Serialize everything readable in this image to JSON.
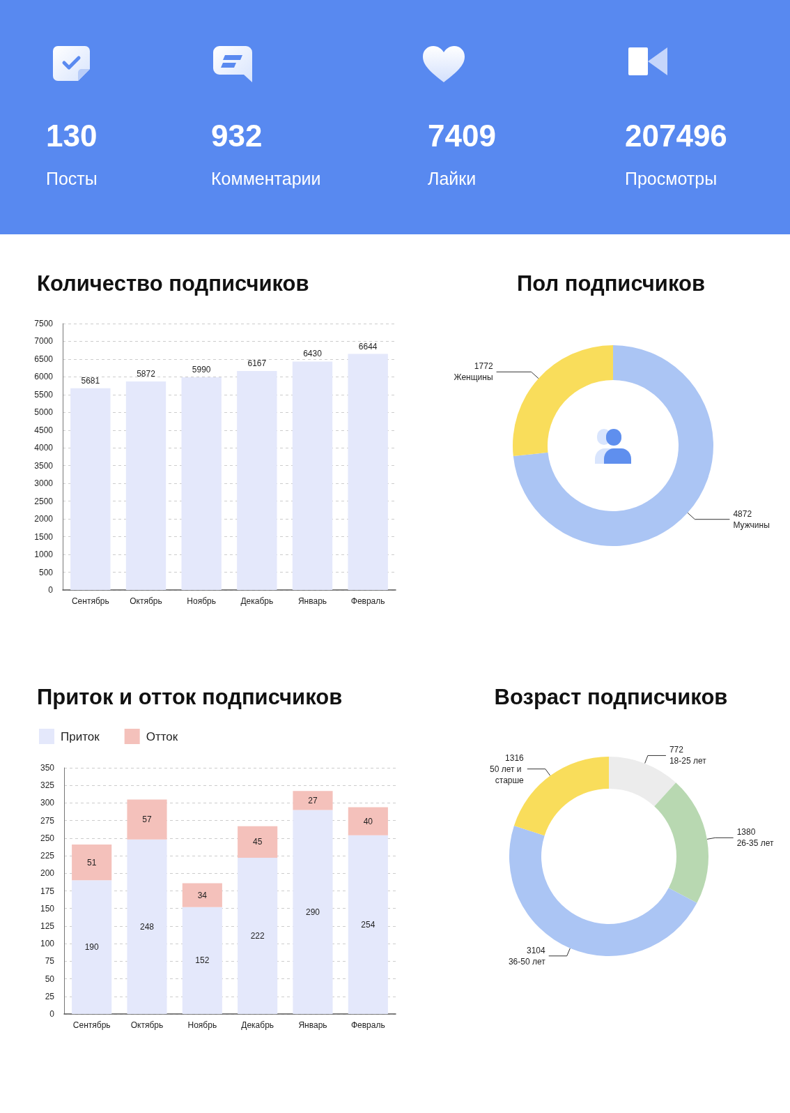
{
  "chart_data": [
    {
      "type": "other",
      "annotations": [
        "130",
        "Посты",
        "932",
        "Комментарии",
        "7409",
        "Лайки",
        "207496",
        "Просмотры"
      ]
    },
    {
      "type": "bar",
      "title": "Количество подписчиков",
      "categories": [
        "Сентябрь",
        "Октябрь",
        "Ноябрь",
        "Декабрь",
        "Январь",
        "Февраль"
      ],
      "values": [
        5681,
        5872,
        5990,
        6167,
        6430,
        6644
      ],
      "color": "#e4e8fb",
      "ylim": [
        0,
        7500
      ],
      "yticks": [
        0,
        500,
        1000,
        1500,
        2000,
        2500,
        3000,
        3500,
        4000,
        4500,
        5000,
        5500,
        6000,
        6500,
        7000,
        7500
      ],
      "grid": "y",
      "data_labels": true
    },
    {
      "type": "donut",
      "title": "Пол подписчиков",
      "categories": [
        "Мужчины",
        "Женщины"
      ],
      "values": [
        4872,
        1772
      ],
      "colors": [
        "#abc5f4",
        "#f9dd5b"
      ],
      "data_labels": true
    },
    {
      "type": "bar",
      "title": "Приток и отток подписчиков",
      "categories": [
        "Сентябрь",
        "Октябрь",
        "Ноябрь",
        "Декабрь",
        "Январь",
        "Февраль"
      ],
      "series": [
        {
          "name": "Приток",
          "color": "#e4e8fb",
          "values": [
            190,
            248,
            152,
            222,
            290,
            254
          ]
        },
        {
          "name": "Отток",
          "color": "#f4c1bb",
          "values": [
            51,
            57,
            34,
            45,
            27,
            40
          ]
        }
      ],
      "stacked": true,
      "ylim": [
        0,
        350
      ],
      "yticks": [
        0,
        25,
        50,
        75,
        100,
        125,
        150,
        175,
        200,
        225,
        250,
        275,
        300,
        325,
        350
      ],
      "grid": "y",
      "legend": "top left",
      "data_labels": true
    },
    {
      "type": "donut",
      "title": "Возраст подписчиков",
      "categories": [
        "18-25 лет",
        "26-35 лет",
        "36-50 лет",
        "50 лет и старше"
      ],
      "values": [
        772,
        1380,
        3104,
        1316
      ],
      "colors": [
        "#ececec",
        "#b8d8b1",
        "#abc5f4",
        "#f9dd5b"
      ],
      "data_labels": true
    }
  ]
}
